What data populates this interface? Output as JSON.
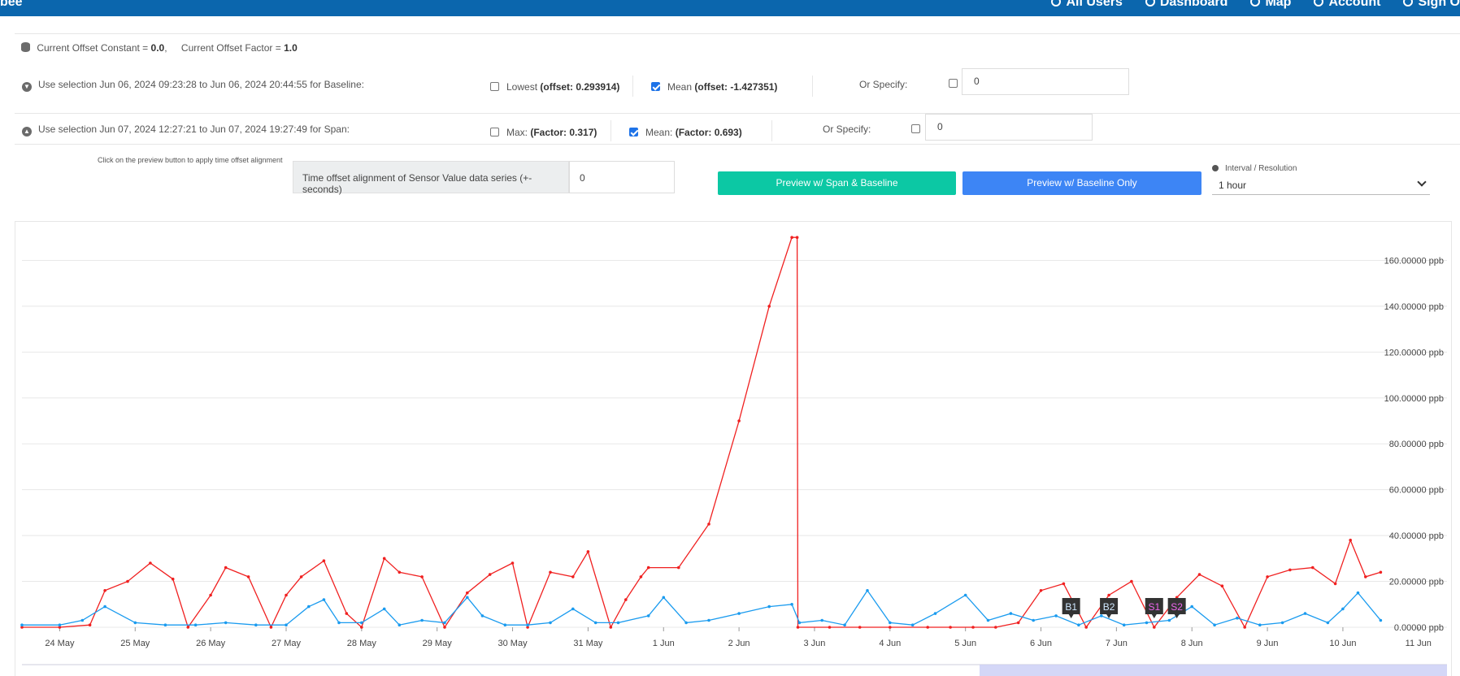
{
  "header": {
    "brand": "bee",
    "nav": [
      "All Users",
      "Dashboard",
      "Map",
      "Account",
      "Sign O"
    ]
  },
  "offset": {
    "constant_label": "Current Offset Constant =",
    "constant_value": "0.0",
    "factor_label": "Current Offset Factor =",
    "factor_value": "1.0"
  },
  "baseline": {
    "label": "Use selection Jun 06, 2024 09:23:28 to Jun 06, 2024 20:44:55 for Baseline:",
    "lowest_label": "Lowest",
    "lowest_value": "(offset: 0.293914)",
    "lowest_checked": false,
    "mean_label": "Mean",
    "mean_value": "(offset: -1.427351)",
    "mean_checked": true,
    "specify_label": "Or Specify:",
    "specify_value": "0"
  },
  "span": {
    "label": "Use selection Jun 07, 2024 12:27:21 to Jun 07, 2024 19:27:49 for Span:",
    "max_label": "Max:",
    "max_value": "(Factor: 0.317)",
    "max_checked": false,
    "mean_label": "Mean:",
    "mean_value": "(Factor: 0.693)",
    "mean_checked": true,
    "specify_label": "Or Specify:",
    "specify_value": "0"
  },
  "alignment": {
    "hint": "Click on the preview button to apply time offset alignment",
    "label": "Time offset alignment of Sensor Value data series (+-seconds)",
    "value": "0"
  },
  "buttons": {
    "preview_span_baseline": "Preview w/ Span & Baseline",
    "preview_baseline_only": "Preview w/ Baseline Only"
  },
  "interval": {
    "label": "Interval / Resolution",
    "selected": "1 hour"
  },
  "colors": {
    "header_bg": "#0b66ad",
    "red_series": "#f02020",
    "blue_series": "#1a9bef",
    "btn_green": "#0cc8a4",
    "btn_blue": "#3d85f5"
  },
  "chart_data": {
    "type": "line",
    "ylim": [
      0,
      180
    ],
    "yticks": [
      "0.00000 ppb",
      "20.00000 ppb",
      "40.00000 ppb",
      "60.00000 ppb",
      "80.00000 ppb",
      "100.00000 ppb",
      "120.00000 ppb",
      "140.00000 ppb",
      "160.00000 ppb"
    ],
    "xticks": [
      "24 May",
      "25 May",
      "26 May",
      "27 May",
      "28 May",
      "29 May",
      "30 May",
      "31 May",
      "1 Jun",
      "2 Jun",
      "3 Jun",
      "4 Jun",
      "5 Jun",
      "6 Jun",
      "7 Jun",
      "8 Jun",
      "9 Jun",
      "10 Jun",
      "11 Jun"
    ],
    "series": [
      {
        "color": "#f02020",
        "x": [
          23.5,
          24.0,
          24.4,
          24.6,
          24.9,
          25.2,
          25.5,
          25.7,
          26.0,
          26.2,
          26.5,
          26.8,
          27.0,
          27.2,
          27.5,
          27.8,
          28.0,
          28.3,
          28.5,
          28.8,
          29.1,
          29.4,
          29.7,
          30.0,
          30.2,
          30.5,
          30.8,
          31.0,
          31.3,
          31.5,
          31.7,
          31.8,
          32.2,
          32.6,
          33.0,
          33.4,
          33.7,
          33.77,
          33.78,
          34.2,
          34.6,
          35.0,
          35.5,
          35.8,
          36.1,
          36.4,
          36.7,
          37.0,
          37.3,
          37.6,
          37.9,
          38.2,
          38.5,
          38.8,
          39.1,
          39.4,
          39.7,
          40.0,
          40.3,
          40.6,
          40.9,
          41.1,
          41.3,
          41.5
        ],
        "y": [
          0,
          0,
          1,
          16,
          20,
          28,
          21,
          0,
          14,
          26,
          22,
          0,
          14,
          22,
          29,
          6,
          0,
          30,
          24,
          22,
          0,
          15,
          23,
          28,
          0,
          24,
          22,
          33,
          0,
          12,
          22,
          26,
          26,
          45,
          90,
          140,
          170,
          170,
          0,
          0,
          0,
          0,
          0,
          0,
          0,
          0,
          2,
          16,
          19,
          0,
          14,
          20,
          0,
          13,
          23,
          18,
          0,
          22,
          25,
          26,
          19,
          38,
          22,
          24
        ]
      },
      {
        "color": "#1a9bef",
        "x": [
          23.5,
          24.0,
          24.3,
          24.6,
          25.0,
          25.4,
          25.8,
          26.2,
          26.6,
          27.0,
          27.3,
          27.5,
          27.7,
          28.0,
          28.3,
          28.5,
          28.8,
          29.1,
          29.4,
          29.6,
          29.9,
          30.2,
          30.5,
          30.8,
          31.1,
          31.4,
          31.8,
          32.0,
          32.3,
          32.6,
          33.0,
          33.4,
          33.7,
          33.8,
          34.1,
          34.4,
          34.7,
          35.0,
          35.3,
          35.6,
          36.0,
          36.3,
          36.6,
          36.9,
          37.2,
          37.5,
          37.8,
          38.1,
          38.4,
          38.7,
          39.0,
          39.3,
          39.6,
          39.9,
          40.2,
          40.5,
          40.8,
          41.0,
          41.2,
          41.5
        ],
        "y": [
          1,
          1,
          3,
          9,
          2,
          1,
          1,
          2,
          1,
          1,
          9,
          12,
          2,
          2,
          8,
          1,
          3,
          2,
          13,
          5,
          1,
          1,
          2,
          8,
          2,
          2,
          5,
          13,
          2,
          3,
          6,
          9,
          10,
          2,
          3,
          1,
          16,
          2,
          1,
          6,
          14,
          3,
          6,
          3,
          5,
          1,
          5,
          1,
          2,
          3,
          9,
          1,
          4,
          1,
          2,
          6,
          2,
          8,
          15,
          3
        ]
      }
    ],
    "markers": [
      {
        "label": "B1",
        "x": 37.4
      },
      {
        "label": "B2",
        "x": 37.9
      },
      {
        "label": "S1",
        "x": 38.5
      },
      {
        "label": "S2",
        "x": 38.8
      }
    ]
  }
}
